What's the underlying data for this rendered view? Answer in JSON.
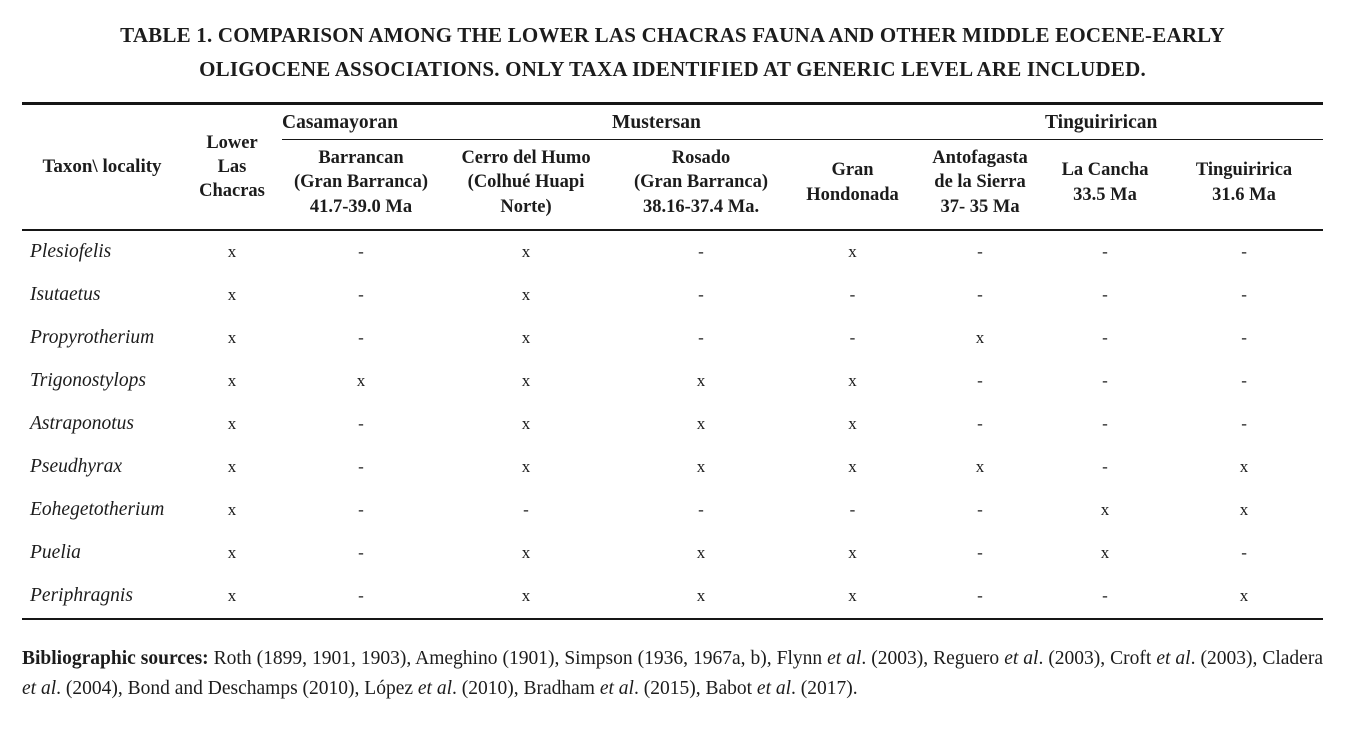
{
  "page": {
    "background_color": "#ffffff",
    "text_color": "#1c1c1c",
    "rule_color": "#161616"
  },
  "title": "TABLE 1. COMPARISON AMONG THE LOWER LAS CHACRAS FAUNA AND OTHER MIDDLE EOCENE-EARLY\nOLIGOCENE ASSOCIATIONS. ONLY TAXA IDENTIFIED AT GENERIC LEVEL ARE INCLUDED.",
  "table": {
    "corner_header": "Taxon\\ locality",
    "lower_las_chacras_header": "Lower\nLas\nChacras",
    "groups": [
      {
        "label": "Casamayoran",
        "span": 2
      },
      {
        "label": "Mustersan",
        "span": 3
      },
      {
        "label": "Tinguirirican",
        "span": 2
      }
    ],
    "columns": [
      "Barrancan\n(Gran Barranca)\n41.7-39.0 Ma",
      "Cerro del Humo\n(Colhué Huapi\nNorte)",
      "Rosado\n(Gran Barranca)\n38.16-37.4 Ma.",
      "Gran\nHondonada",
      "Antofagasta\nde la Sierra\n37- 35 Ma",
      "La Cancha\n33.5 Ma",
      "Tinguiririca\n31.6 Ma"
    ],
    "present_mark": "x",
    "absent_mark": "-",
    "rows": [
      {
        "taxon": "Plesiofelis",
        "marks": [
          "x",
          "-",
          "x",
          "-",
          "x",
          "-",
          "-",
          "-"
        ]
      },
      {
        "taxon": "Isutaetus",
        "marks": [
          "x",
          "-",
          "x",
          "-",
          "-",
          "-",
          "-",
          "-"
        ]
      },
      {
        "taxon": "Propyrotherium",
        "marks": [
          "x",
          "-",
          "x",
          "-",
          "-",
          "x",
          "-",
          "-"
        ]
      },
      {
        "taxon": "Trigonostylops",
        "marks": [
          "x",
          "x",
          "x",
          "x",
          "x",
          "-",
          "-",
          "-"
        ]
      },
      {
        "taxon": "Astraponotus",
        "marks": [
          "x",
          "-",
          "x",
          "x",
          "x",
          "-",
          "-",
          "-"
        ]
      },
      {
        "taxon": "Pseudhyrax",
        "marks": [
          "x",
          "-",
          "x",
          "x",
          "x",
          "x",
          "-",
          "x"
        ]
      },
      {
        "taxon": "Eohegetotherium",
        "marks": [
          "x",
          "-",
          "-",
          "-",
          "-",
          "-",
          "x",
          "x"
        ]
      },
      {
        "taxon": "Puelia",
        "marks": [
          "x",
          "-",
          "x",
          "x",
          "x",
          "-",
          "x",
          "-"
        ]
      },
      {
        "taxon": "Periphragnis",
        "marks": [
          "x",
          "-",
          "x",
          "x",
          "x",
          "-",
          "-",
          "x"
        ]
      }
    ]
  },
  "footer": {
    "segments": [
      {
        "text": "Bibliographic sources:",
        "style": "bold"
      },
      {
        "text": " Roth (1899, 1901, 1903), Ameghino (1901), Simpson (1936, 1967a, b), Flynn ",
        "style": "normal"
      },
      {
        "text": "et al",
        "style": "italic"
      },
      {
        "text": ". (2003), Reguero ",
        "style": "normal"
      },
      {
        "text": "et al",
        "style": "italic"
      },
      {
        "text": ". (2003), Croft ",
        "style": "normal"
      },
      {
        "text": "et al",
        "style": "italic"
      },
      {
        "text": ". (2003), Cladera ",
        "style": "normal"
      },
      {
        "text": "et al",
        "style": "italic"
      },
      {
        "text": ". (2004), Bond and Deschamps (2010), López ",
        "style": "normal"
      },
      {
        "text": "et al",
        "style": "italic"
      },
      {
        "text": ". (2010), Bradham ",
        "style": "normal"
      },
      {
        "text": "et al",
        "style": "italic"
      },
      {
        "text": ". (2015), Babot ",
        "style": "normal"
      },
      {
        "text": "et al",
        "style": "italic"
      },
      {
        "text": ". (2017).",
        "style": "normal"
      }
    ]
  }
}
